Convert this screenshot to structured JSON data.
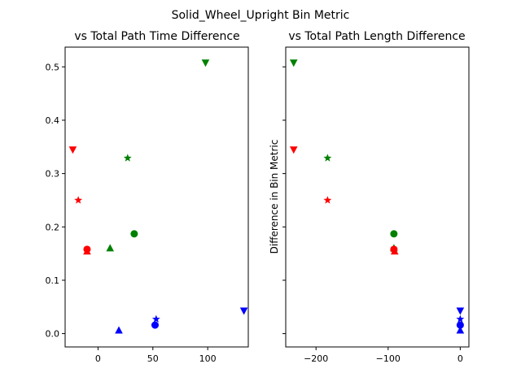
{
  "suptitle": "Solid_Wheel_Upright Bin Metric",
  "colors": {
    "red": "#ff0000",
    "green": "#008000",
    "blue": "#0000ff"
  },
  "chart_data": [
    {
      "type": "scatter",
      "title": "vs Total Path Time Difference",
      "xlabel": "",
      "ylabel": "",
      "xlim": [
        -30,
        137
      ],
      "ylim": [
        -0.025,
        0.537
      ],
      "xticks": [
        0,
        50,
        100
      ],
      "yticks": [
        0.0,
        0.1,
        0.2,
        0.3,
        0.4,
        0.5
      ],
      "grid": false,
      "points": [
        {
          "x": -23,
          "y": 0.345,
          "color": "red",
          "marker": "triangle-down"
        },
        {
          "x": -18,
          "y": 0.25,
          "color": "red",
          "marker": "star"
        },
        {
          "x": -10,
          "y": 0.158,
          "color": "red",
          "marker": "circle"
        },
        {
          "x": -10,
          "y": 0.154,
          "color": "red",
          "marker": "triangle-up"
        },
        {
          "x": 27,
          "y": 0.329,
          "color": "green",
          "marker": "star"
        },
        {
          "x": 33,
          "y": 0.187,
          "color": "green",
          "marker": "circle"
        },
        {
          "x": 11,
          "y": 0.16,
          "color": "green",
          "marker": "triangle-up"
        },
        {
          "x": 98,
          "y": 0.508,
          "color": "green",
          "marker": "triangle-down"
        },
        {
          "x": 19,
          "y": 0.006,
          "color": "blue",
          "marker": "triangle-up"
        },
        {
          "x": 52,
          "y": 0.016,
          "color": "blue",
          "marker": "circle"
        },
        {
          "x": 53,
          "y": 0.027,
          "color": "blue",
          "marker": "star"
        },
        {
          "x": 133,
          "y": 0.043,
          "color": "blue",
          "marker": "triangle-down"
        }
      ]
    },
    {
      "type": "scatter",
      "title": "vs Total Path Length Difference",
      "xlabel": "",
      "ylabel": "Difference in Bin Metric",
      "xlim": [
        -242,
        12
      ],
      "ylim": [
        -0.025,
        0.537
      ],
      "xticks": [
        -200,
        -100,
        0
      ],
      "yticks": [
        0.0,
        0.1,
        0.2,
        0.3,
        0.4,
        0.5
      ],
      "shared_y": true,
      "grid": false,
      "points": [
        {
          "x": -231,
          "y": 0.508,
          "color": "green",
          "marker": "triangle-down"
        },
        {
          "x": -231,
          "y": 0.345,
          "color": "red",
          "marker": "triangle-down"
        },
        {
          "x": -184,
          "y": 0.329,
          "color": "green",
          "marker": "star"
        },
        {
          "x": -184,
          "y": 0.25,
          "color": "red",
          "marker": "star"
        },
        {
          "x": -92,
          "y": 0.187,
          "color": "green",
          "marker": "circle"
        },
        {
          "x": -92,
          "y": 0.16,
          "color": "green",
          "marker": "triangle-up"
        },
        {
          "x": -92,
          "y": 0.158,
          "color": "red",
          "marker": "circle"
        },
        {
          "x": -91,
          "y": 0.154,
          "color": "red",
          "marker": "triangle-up"
        },
        {
          "x": 0,
          "y": 0.043,
          "color": "blue",
          "marker": "triangle-down"
        },
        {
          "x": 0,
          "y": 0.027,
          "color": "blue",
          "marker": "star"
        },
        {
          "x": 0,
          "y": 0.016,
          "color": "blue",
          "marker": "circle"
        },
        {
          "x": 0,
          "y": 0.006,
          "color": "blue",
          "marker": "triangle-up"
        }
      ]
    }
  ]
}
